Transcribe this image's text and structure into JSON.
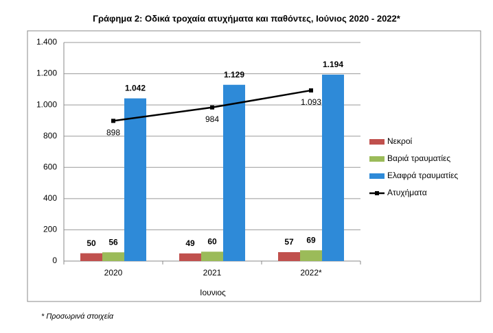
{
  "chart_data": {
    "type": "bar",
    "title": "Γράφημα 2: Οδικά τροχαία ατυχήματα και παθόντες, Ιούνιος 2020 - 2022*",
    "x_label": "Ιουνιος",
    "footnote": "* Προσωρινά στοιχεία",
    "categories": [
      "2020",
      "2021",
      "2022*"
    ],
    "series": [
      {
        "name": "Νεκροί",
        "color": "#c0504d",
        "values": [
          50,
          49,
          57
        ]
      },
      {
        "name": "Βαριά τραυματίες",
        "color": "#9bbb59",
        "values": [
          56,
          60,
          69
        ]
      },
      {
        "name": "Ελαφρά τραυματίες",
        "color": "#2e8ad8",
        "values": [
          1042,
          1129,
          1194
        ],
        "value_labels": [
          "1.042",
          "1.129",
          "1.194"
        ]
      },
      {
        "name": "Ατυχήματα",
        "color": "#000000",
        "type": "line",
        "values": [
          898,
          984,
          1093
        ],
        "value_labels": [
          "898",
          "984",
          "1.093"
        ]
      }
    ],
    "ylim": [
      0,
      1400
    ],
    "yticks": [
      0,
      200,
      400,
      600,
      800,
      {
        "value": 1000,
        "label": "1.000"
      },
      {
        "value": 1200,
        "label": "1.200"
      },
      {
        "value": 1400,
        "label": "1.400"
      }
    ],
    "grid": true,
    "legend": "right"
  }
}
